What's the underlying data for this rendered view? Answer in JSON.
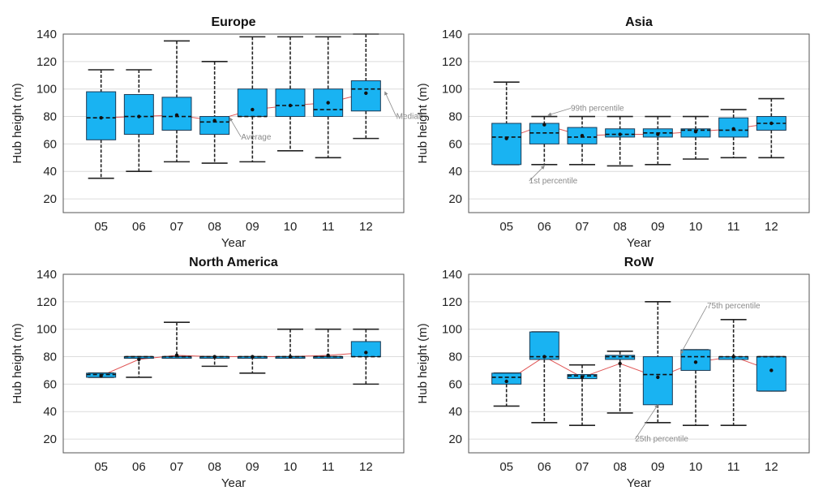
{
  "chart_data": [
    {
      "type": "boxplot",
      "title": "Europe",
      "xlabel": "Year",
      "ylabel": "Hub height (m)",
      "ylim": [
        10,
        140
      ],
      "yticks": [
        20,
        40,
        60,
        80,
        100,
        120,
        140
      ],
      "categories": [
        "05",
        "06",
        "07",
        "08",
        "09",
        "10",
        "11",
        "12"
      ],
      "boxes": [
        {
          "p1": 35,
          "q1": 63,
          "median": 79,
          "q3": 98,
          "p99": 114,
          "mean": 79
        },
        {
          "p1": 40,
          "q1": 67,
          "median": 80,
          "q3": 96,
          "p99": 114,
          "mean": 80
        },
        {
          "p1": 47,
          "q1": 70,
          "median": 80,
          "q3": 94,
          "p99": 135,
          "mean": 81
        },
        {
          "p1": 46,
          "q1": 67,
          "median": 76,
          "q3": 80,
          "p99": 120,
          "mean": 77
        },
        {
          "p1": 47,
          "q1": 80,
          "median": 80,
          "q3": 100,
          "p99": 138,
          "mean": 85
        },
        {
          "p1": 55,
          "q1": 80,
          "median": 88,
          "q3": 100,
          "p99": 138,
          "mean": 88
        },
        {
          "p1": 50,
          "q1": 80,
          "median": 85,
          "q3": 100,
          "p99": 138,
          "mean": 90
        },
        {
          "p1": 64,
          "q1": 84,
          "median": 100,
          "q3": 106,
          "p99": 140,
          "mean": 97
        }
      ],
      "annotations": [
        {
          "text": "Average",
          "x": 4.7,
          "y": 65,
          "tx": 4.4,
          "ty": 79
        },
        {
          "text": "Median",
          "x": 8.8,
          "y": 80,
          "tx": 8.5,
          "ty": 98
        }
      ]
    },
    {
      "type": "boxplot",
      "title": "Asia",
      "xlabel": "Year",
      "ylabel": "Hub height (m)",
      "ylim": [
        10,
        140
      ],
      "yticks": [
        20,
        40,
        60,
        80,
        100,
        120,
        140
      ],
      "categories": [
        "05",
        "06",
        "07",
        "08",
        "09",
        "10",
        "11",
        "12"
      ],
      "boxes": [
        {
          "p1": 45,
          "q1": 45,
          "median": 65,
          "q3": 75,
          "p99": 105,
          "mean": 64
        },
        {
          "p1": 45,
          "q1": 60,
          "median": 68,
          "q3": 75,
          "p99": 80,
          "mean": 74
        },
        {
          "p1": 45,
          "q1": 60,
          "median": 65,
          "q3": 72,
          "p99": 80,
          "mean": 66
        },
        {
          "p1": 44,
          "q1": 65,
          "median": 67,
          "q3": 71,
          "p99": 80,
          "mean": 67
        },
        {
          "p1": 45,
          "q1": 65,
          "median": 68,
          "q3": 71,
          "p99": 80,
          "mean": 67
        },
        {
          "p1": 49,
          "q1": 65,
          "median": 70,
          "q3": 71,
          "p99": 80,
          "mean": 69
        },
        {
          "p1": 50,
          "q1": 65,
          "median": 70,
          "q3": 79,
          "p99": 85,
          "mean": 71
        },
        {
          "p1": 50,
          "q1": 70,
          "median": 75,
          "q3": 80,
          "p99": 93,
          "mean": 75
        }
      ],
      "annotations": [
        {
          "text": "99th percentile",
          "x": 2.7,
          "y": 86,
          "tx": 2.1,
          "ty": 81
        },
        {
          "text": "1st percentile",
          "x": 1.6,
          "y": 33,
          "tx": 2.0,
          "ty": 44
        }
      ]
    },
    {
      "type": "boxplot",
      "title": "North America",
      "xlabel": "Year",
      "ylabel": "Hub height (m)",
      "ylim": [
        10,
        140
      ],
      "yticks": [
        20,
        40,
        60,
        80,
        100,
        120,
        140
      ],
      "categories": [
        "05",
        "06",
        "07",
        "08",
        "09",
        "10",
        "11",
        "12"
      ],
      "boxes": [
        {
          "p1": 65,
          "q1": 65,
          "median": 67,
          "q3": 68,
          "p99": 68,
          "mean": 66
        },
        {
          "p1": 65,
          "q1": 80,
          "median": 80,
          "q3": 80,
          "p99": 80,
          "mean": 78
        },
        {
          "p1": 80,
          "q1": 80,
          "median": 80,
          "q3": 80,
          "p99": 105,
          "mean": 81
        },
        {
          "p1": 73,
          "q1": 80,
          "median": 80,
          "q3": 80,
          "p99": 80,
          "mean": 80
        },
        {
          "p1": 68,
          "q1": 80,
          "median": 80,
          "q3": 80,
          "p99": 80,
          "mean": 80
        },
        {
          "p1": 80,
          "q1": 80,
          "median": 80,
          "q3": 80,
          "p99": 100,
          "mean": 80
        },
        {
          "p1": 80,
          "q1": 80,
          "median": 80,
          "q3": 80,
          "p99": 100,
          "mean": 81
        },
        {
          "p1": 60,
          "q1": 80,
          "median": 80,
          "q3": 91,
          "p99": 100,
          "mean": 83
        }
      ],
      "annotations": []
    },
    {
      "type": "boxplot",
      "title": "RoW",
      "xlabel": "Year",
      "ylabel": "Hub height (m)",
      "ylim": [
        10,
        140
      ],
      "yticks": [
        20,
        40,
        60,
        80,
        100,
        120,
        140
      ],
      "categories": [
        "05",
        "06",
        "07",
        "08",
        "09",
        "10",
        "11",
        "12"
      ],
      "boxes": [
        {
          "p1": 44,
          "q1": 60,
          "median": 65,
          "q3": 68,
          "p99": 68,
          "mean": 62
        },
        {
          "p1": 32,
          "q1": 78,
          "median": 80,
          "q3": 98,
          "p99": 98,
          "mean": 80
        },
        {
          "p1": 30,
          "q1": 64,
          "median": 66,
          "q3": 67,
          "p99": 74,
          "mean": 65
        },
        {
          "p1": 39,
          "q1": 78,
          "median": 80,
          "q3": 81,
          "p99": 84,
          "mean": 75
        },
        {
          "p1": 32,
          "q1": 45,
          "median": 67,
          "q3": 80,
          "p99": 120,
          "mean": 65
        },
        {
          "p1": 30,
          "q1": 70,
          "median": 80,
          "q3": 85,
          "p99": 85,
          "mean": 76
        },
        {
          "p1": 30,
          "q1": 78,
          "median": 80,
          "q3": 80,
          "p99": 107,
          "mean": 80
        },
        {
          "p1": 55,
          "q1": 55,
          "median": 80,
          "q3": 80,
          "p99": 80,
          "mean": 70
        }
      ],
      "annotations": [
        {
          "text": "75th percentile",
          "x": 6.3,
          "y": 117,
          "tx": 5.6,
          "ty": 82
        },
        {
          "text": "25th percentile",
          "x": 4.4,
          "y": 20,
          "tx": 5.0,
          "ty": 45
        }
      ]
    }
  ]
}
